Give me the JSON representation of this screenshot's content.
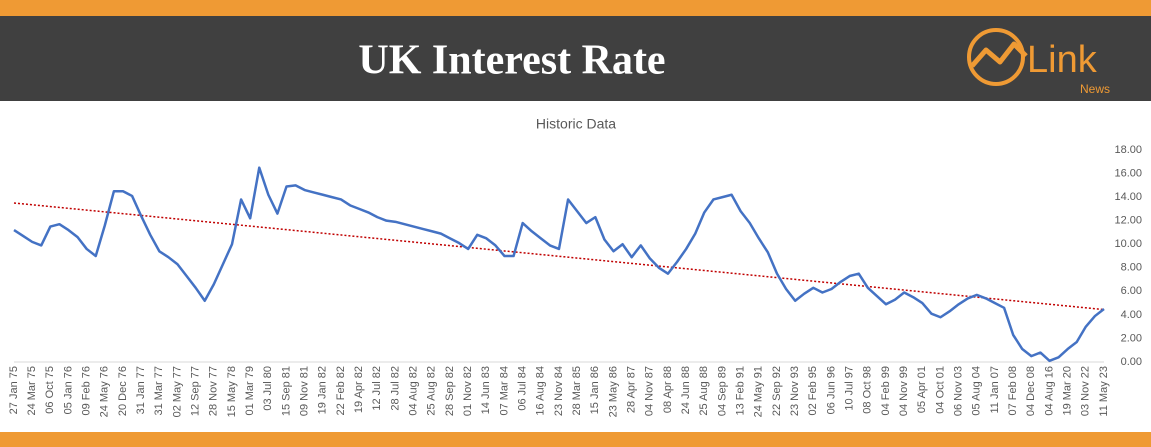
{
  "header": {
    "title": "UK Interest Rate",
    "logo": {
      "name": "Link",
      "tagline": "News"
    }
  },
  "chart_data": {
    "type": "line",
    "title": "Historic Data",
    "categories": [
      "27 Jan 75",
      null,
      "24 Mar 75",
      null,
      "06 Oct 75",
      null,
      "05 Jan 76",
      null,
      "09 Feb 76",
      null,
      "24 May 76",
      null,
      "20 Dec 76",
      null,
      "31 Jan 77",
      null,
      "31 Mar 77",
      null,
      "02 May 77",
      null,
      "12 Sep 77",
      null,
      "28 Nov 77",
      null,
      "15 May 78",
      null,
      "01 Mar 79",
      null,
      "03 Jul 80",
      null,
      "15 Sep 81",
      null,
      "09 Nov 81",
      null,
      "19 Jan 82",
      null,
      "22 Feb 82",
      null,
      "19 Apr 82",
      null,
      "12 Jul 82",
      null,
      "28 Jul 82",
      null,
      "04 Aug 82",
      null,
      "25 Aug 82",
      null,
      "28 Sep 82",
      null,
      "01 Nov 82",
      null,
      "14 Jun 83",
      null,
      "07 Mar 84",
      null,
      "06 Jul 84",
      null,
      "16 Aug 84",
      null,
      "23 Nov 84",
      null,
      "28 Mar 85",
      null,
      "15 Jan 86",
      null,
      "23 May 86",
      null,
      "28 Apr 87",
      null,
      "04 Nov 87",
      null,
      "08 Apr 88",
      null,
      "24 Jun 88",
      null,
      "25 Aug 88",
      null,
      "04 Sep 89",
      null,
      "13 Feb 91",
      null,
      "24 May 91",
      null,
      "22 Sep 92",
      null,
      "23 Nov 93",
      null,
      "02 Feb 95",
      null,
      "06 Jun 96",
      null,
      "10 Jul 97",
      null,
      "08 Oct 98",
      null,
      "04 Feb 99",
      null,
      "04 Nov 99",
      null,
      "05 Apr 01",
      null,
      "04 Oct 01",
      null,
      "06 Nov 03",
      null,
      "05 Aug 04",
      null,
      "11 Jan 07",
      null,
      "07 Feb 08",
      null,
      "04 Dec 08",
      null,
      "04 Aug 16",
      null,
      "19 Mar 20",
      null,
      "03 Nov 22",
      null,
      "11 May 23"
    ],
    "series": [
      {
        "color": "#4472c4",
        "values": [
          11.2,
          10.7,
          10.2,
          9.9,
          11.5,
          11.7,
          11.2,
          10.6,
          9.6,
          9.0,
          11.6,
          14.5,
          14.5,
          14.1,
          12.4,
          10.8,
          9.4,
          8.9,
          8.3,
          7.3,
          6.3,
          5.2,
          6.6,
          8.3,
          10.0,
          13.8,
          12.2,
          16.5,
          14.2,
          12.6,
          14.9,
          15.0,
          14.6,
          14.4,
          14.2,
          14.0,
          13.8,
          13.3,
          13.0,
          12.7,
          12.3,
          12.0,
          11.9,
          11.7,
          11.5,
          11.3,
          11.1,
          10.9,
          10.5,
          10.1,
          9.6,
          10.8,
          10.5,
          9.9,
          9.0,
          9.0,
          11.8,
          11.1,
          10.5,
          9.9,
          9.6,
          13.8,
          12.8,
          11.8,
          12.3,
          10.4,
          9.4,
          10.0,
          8.9,
          9.9,
          8.8,
          8.0,
          7.5,
          8.5,
          9.6,
          10.9,
          12.7,
          13.8,
          14.0,
          14.2,
          12.8,
          11.8,
          10.5,
          9.3,
          7.5,
          6.2,
          5.2,
          5.8,
          6.3,
          5.9,
          6.2,
          6.8,
          7.3,
          7.5,
          6.3,
          5.6,
          4.9,
          5.3,
          5.9,
          5.5,
          5.0,
          4.1,
          3.8,
          4.3,
          4.9,
          5.4,
          5.7,
          5.4,
          5.0,
          4.6,
          2.3,
          1.1,
          0.5,
          0.8,
          0.1,
          0.4,
          1.1,
          1.7,
          3.0,
          3.9,
          4.5
        ]
      }
    ],
    "trendline": {
      "color": "#c00000",
      "values": [
        13.5,
        4.45
      ]
    },
    "ylim": [
      0,
      18
    ],
    "yticks": [
      {
        "value": 0,
        "label": "0.00"
      },
      {
        "value": 2,
        "label": "2.00"
      },
      {
        "value": 4,
        "label": "4.00"
      },
      {
        "value": 6,
        "label": "6.00"
      },
      {
        "value": 8,
        "label": "8.00"
      },
      {
        "value": 10,
        "label": "10.00"
      },
      {
        "value": 12,
        "label": "12.00"
      },
      {
        "value": 14,
        "label": "14.00"
      },
      {
        "value": 16,
        "label": "16.00"
      },
      {
        "value": 18,
        "label": "18.00"
      }
    ],
    "grid": false
  }
}
